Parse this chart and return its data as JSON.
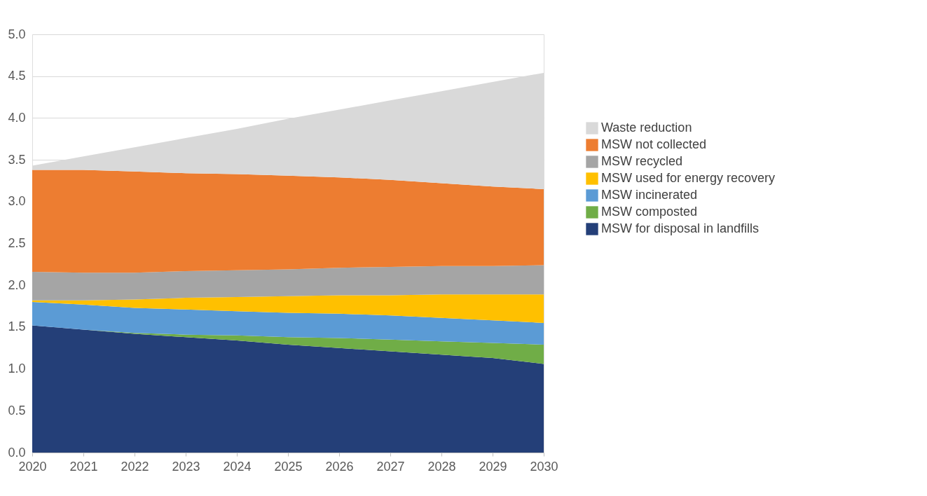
{
  "chart_data": {
    "type": "area",
    "stacked": true,
    "categories": [
      "2020",
      "2021",
      "2022",
      "2023",
      "2024",
      "2025",
      "2026",
      "2027",
      "2028",
      "2029",
      "2030"
    ],
    "series": [
      {
        "name": "MSW for disposal in landfills",
        "color": "#243f78",
        "values": [
          1.52,
          1.47,
          1.42,
          1.38,
          1.34,
          1.29,
          1.25,
          1.21,
          1.17,
          1.13,
          1.06
        ]
      },
      {
        "name": "MSW composted",
        "color": "#70ad47",
        "values": [
          0,
          0,
          0.01,
          0.03,
          0.06,
          0.09,
          0.12,
          0.14,
          0.16,
          0.18,
          0.23
        ]
      },
      {
        "name": "MSW incinerated",
        "color": "#5b9bd5",
        "values": [
          0.28,
          0.3,
          0.3,
          0.3,
          0.29,
          0.29,
          0.29,
          0.29,
          0.28,
          0.27,
          0.26
        ]
      },
      {
        "name": "MSW used for energy recovery",
        "color": "#ffc000",
        "values": [
          0.02,
          0.05,
          0.1,
          0.14,
          0.17,
          0.2,
          0.22,
          0.24,
          0.28,
          0.31,
          0.34
        ]
      },
      {
        "name": "MSW recycled",
        "color": "#a5a5a5",
        "values": [
          0.34,
          0.33,
          0.32,
          0.32,
          0.32,
          0.32,
          0.33,
          0.34,
          0.34,
          0.34,
          0.35
        ]
      },
      {
        "name": "MSW not collected",
        "color": "#ed7d31",
        "values": [
          1.22,
          1.23,
          1.21,
          1.17,
          1.15,
          1.12,
          1.08,
          1.04,
          0.99,
          0.95,
          0.91
        ]
      },
      {
        "name": "Waste reduction",
        "color": "#d9d9d9",
        "values": [
          0.05,
          0.16,
          0.29,
          0.42,
          0.54,
          0.68,
          0.81,
          0.95,
          1.1,
          1.25,
          1.39
        ]
      }
    ],
    "ylim": [
      0,
      5
    ],
    "yticks": [
      {
        "value": 0,
        "label": "0.0"
      },
      {
        "value": 0.5,
        "label": "0.5"
      },
      {
        "value": 1,
        "label": "1.0"
      },
      {
        "value": 1.5,
        "label": "1.5"
      },
      {
        "value": 2,
        "label": "2.0"
      },
      {
        "value": 2.5,
        "label": "2.5"
      },
      {
        "value": 3,
        "label": "3.0"
      },
      {
        "value": 3.5,
        "label": "3.5"
      },
      {
        "value": 4,
        "label": "4.0"
      },
      {
        "value": 4.5,
        "label": "4.5"
      },
      {
        "value": 5,
        "label": "5.0"
      }
    ],
    "grid": "y",
    "legend": "right"
  }
}
